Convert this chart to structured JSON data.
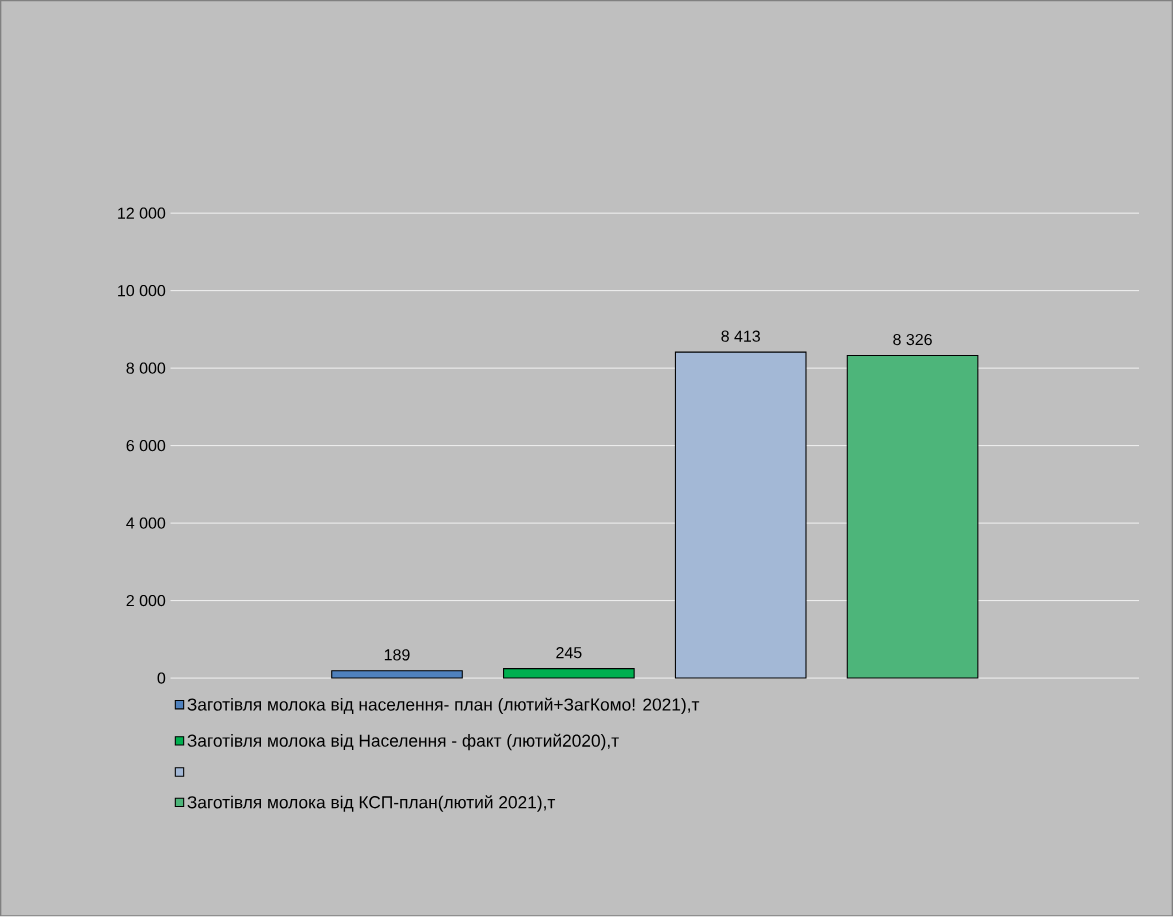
{
  "chart_data": {
    "type": "bar",
    "categories": [
      null
    ],
    "series": [
      {
        "name": "Заготівля молока від населення- план (лютий+ЗагКомо! 2021),т",
        "color": "#4f81bd",
        "values": [
          189
        ],
        "value_labels": [
          "189"
        ]
      },
      {
        "name": "Заготівля молока від Населення - факт (лютий2020),т",
        "color": "#00b050",
        "values": [
          245
        ],
        "value_labels": [
          "245"
        ]
      },
      {
        "color": "#a3b8d6",
        "values": [
          8413
        ],
        "value_labels": [
          "8 413"
        ]
      },
      {
        "name": "Заготівля молока від КСП-план(лютий 2021),т",
        "color": "#4db57a",
        "values": [
          8326
        ],
        "value_labels": [
          "8 326"
        ]
      }
    ],
    "ylim": [
      0,
      12000
    ],
    "yticks": [
      0,
      {
        "value": 2000,
        "label": "2 000"
      },
      {
        "value": 4000,
        "label": "4 000"
      },
      {
        "value": 6000,
        "label": "6 000"
      },
      {
        "value": 8000,
        "label": "8 000"
      },
      {
        "value": 10000,
        "label": "10 000"
      },
      {
        "value": 12000,
        "label": "12 000"
      }
    ],
    "grid": "y",
    "legend": "bottom"
  }
}
